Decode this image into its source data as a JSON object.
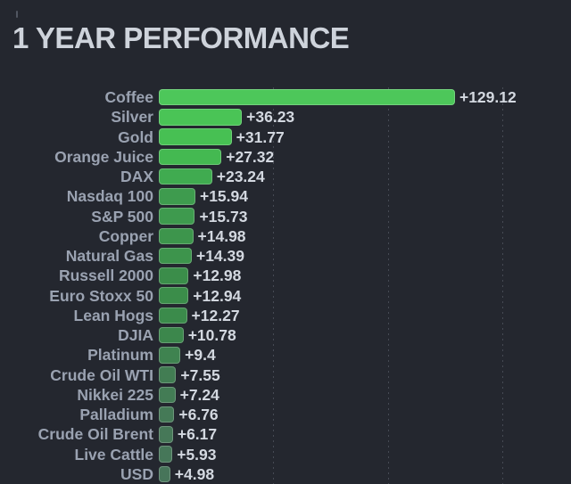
{
  "title": "1 YEAR PERFORMANCE",
  "colors": {
    "background": "#24272f",
    "title_text": "#ced3db",
    "label_text": "#9aa2b1",
    "value_text": "#d3d8e0",
    "gridline": "rgba(190,200,215,0.22)",
    "bar_border": "rgba(255,255,255,0.22)"
  },
  "chart_data": {
    "type": "bar",
    "orientation": "horizontal",
    "title": "1 YEAR PERFORMANCE",
    "categories": [
      "Coffee",
      "Silver",
      "Gold",
      "Orange Juice",
      "DAX",
      "Nasdaq 100",
      "S&P 500",
      "Copper",
      "Natural Gas",
      "Russell 2000",
      "Euro Stoxx 50",
      "Lean Hogs",
      "DJIA",
      "Platinum",
      "Crude Oil WTI",
      "Nikkei 225",
      "Palladium",
      "Crude Oil Brent",
      "Live Cattle",
      "USD"
    ],
    "values": [
      129.12,
      36.23,
      31.77,
      27.32,
      23.24,
      15.94,
      15.73,
      14.98,
      14.39,
      12.98,
      12.94,
      12.27,
      10.78,
      9.4,
      7.55,
      7.24,
      6.76,
      6.17,
      5.93,
      4.98
    ],
    "value_labels": [
      "+129.12",
      "+36.23",
      "+31.77",
      "+27.32",
      "+23.24",
      "+15.94",
      "+15.73",
      "+14.98",
      "+14.39",
      "+12.98",
      "+12.94",
      "+12.27",
      "+10.78",
      "+9.4",
      "+7.55",
      "+7.24",
      "+6.76",
      "+6.17",
      "+5.93",
      "+4.98"
    ],
    "bar_colors": [
      "#4dc75a",
      "#4ac456",
      "#47c053",
      "#44b951",
      "#40ab50",
      "#3e9b4e",
      "#3e9a4e",
      "#3d954c",
      "#3d944c",
      "#3b8d4a",
      "#3b8d4a",
      "#3b8b4b",
      "#3c874c",
      "#3f8350",
      "#427d53",
      "#437c55",
      "#457a57",
      "#467858",
      "#467759",
      "#47755a"
    ],
    "xlim": [
      0,
      173
    ],
    "gridlines_x": [
      50,
      100,
      150
    ],
    "grid_style": "dashed-vertical",
    "ylabel": "",
    "xlabel": "",
    "legend": false
  }
}
